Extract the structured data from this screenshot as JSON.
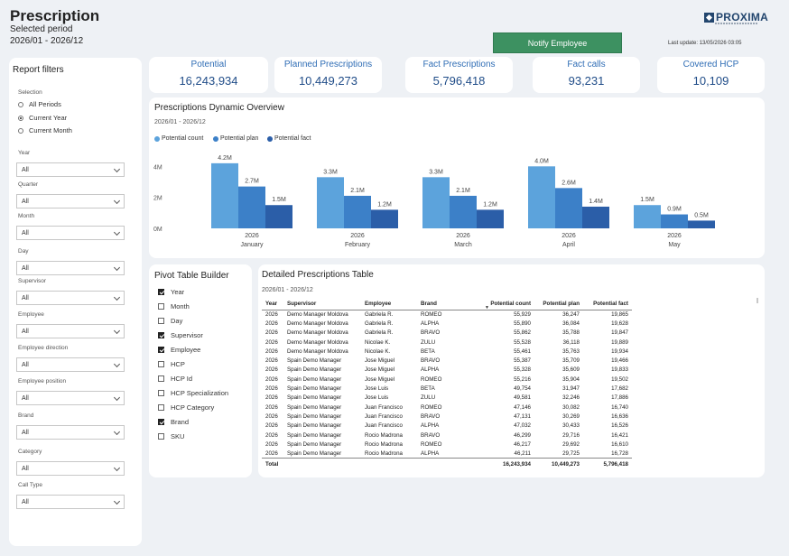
{
  "header": {
    "title": "Prescription",
    "period_label": "Selected period",
    "period_value": "2026/01 - 2026/12",
    "notify_button": "Notify Employee",
    "last_update": "Last update: 13/05/2026 03:05",
    "logo_text": "PROXIMA"
  },
  "filters": {
    "title": "Report filters",
    "selection_caption": "Selection",
    "radios": [
      {
        "label": "All Periods",
        "checked": false
      },
      {
        "label": "Current Year",
        "checked": true
      },
      {
        "label": "Current Month",
        "checked": false
      }
    ],
    "dropdowns": [
      {
        "label": "Year",
        "value": "All"
      },
      {
        "label": "Quarter",
        "value": "All"
      },
      {
        "label": "Month",
        "value": "All"
      },
      {
        "label": "Day",
        "value": "All"
      },
      {
        "label": "Supervisor",
        "value": "All"
      },
      {
        "label": "Employee",
        "value": "All"
      },
      {
        "label": "Employee direction",
        "value": "All"
      },
      {
        "label": "Employee position",
        "value": "All"
      },
      {
        "label": "Brand",
        "value": "All"
      },
      {
        "label": "Category",
        "value": "All"
      },
      {
        "label": "Call Type",
        "value": "All"
      }
    ]
  },
  "kpis": [
    {
      "label": "Potential",
      "value": "16,243,934"
    },
    {
      "label": "Planned Prescriptions",
      "value": "10,449,273"
    },
    {
      "label": "Fact Prescriptions",
      "value": "5,796,418"
    },
    {
      "label": "Fact calls",
      "value": "93,231"
    },
    {
      "label": "Covered HCP",
      "value": "10,109"
    }
  ],
  "chart": {
    "title": "Prescriptions Dynamic Overview",
    "subtitle": "2026/01 - 2026/12"
  },
  "chart_data": {
    "type": "bar",
    "categories": [
      "January",
      "February",
      "March",
      "April",
      "May"
    ],
    "year_labels": [
      "2026",
      "2026",
      "2026",
      "2026",
      "2026"
    ],
    "series": [
      {
        "name": "Potential count",
        "color": "#5ca3dc",
        "values": [
          4.2,
          3.3,
          3.3,
          4.0,
          1.5
        ],
        "labels": [
          "4.2M",
          "3.3M",
          "3.3M",
          "4.0M",
          "1.5M"
        ]
      },
      {
        "name": "Potential plan",
        "color": "#3c80c8",
        "values": [
          2.7,
          2.1,
          2.1,
          2.6,
          0.9
        ],
        "labels": [
          "2.7M",
          "2.1M",
          "2.1M",
          "2.6M",
          "0.9M"
        ]
      },
      {
        "name": "Potential fact",
        "color": "#2b5ea8",
        "values": [
          1.5,
          1.2,
          1.2,
          1.4,
          0.5
        ],
        "labels": [
          "1.5M",
          "1.2M",
          "1.2M",
          "1.4M",
          "0.5M"
        ]
      }
    ],
    "y_ticks": [
      "0M",
      "2M",
      "4M"
    ],
    "ylim": [
      0,
      4.6
    ],
    "legend_position": "top-left"
  },
  "pivot": {
    "title": "Pivot Table Builder",
    "items": [
      {
        "label": "Year",
        "checked": true
      },
      {
        "label": "Month",
        "checked": false
      },
      {
        "label": "Day",
        "checked": false
      },
      {
        "label": "Supervisor",
        "checked": true
      },
      {
        "label": "Employee",
        "checked": true
      },
      {
        "label": "HCP",
        "checked": false
      },
      {
        "label": "HCP Id",
        "checked": false
      },
      {
        "label": "HCP Specialization",
        "checked": false
      },
      {
        "label": "HCP Category",
        "checked": false
      },
      {
        "label": "Brand",
        "checked": true
      },
      {
        "label": "SKU",
        "checked": false
      }
    ]
  },
  "table": {
    "title": "Detailed Prescriptions Table",
    "subtitle": "2026/01 - 2026/12",
    "columns": [
      "Year",
      "Supervisor",
      "Employee",
      "Brand",
      "Potential count",
      "Potential plan",
      "Potential fact"
    ],
    "rows": [
      [
        "2026",
        "Demo Manager Moldova",
        "Gabriela R.",
        "ROMEO",
        "55,929",
        "36,247",
        "19,865"
      ],
      [
        "2026",
        "Demo Manager Moldova",
        "Gabriela R.",
        "ALPHA",
        "55,890",
        "36,084",
        "19,628"
      ],
      [
        "2026",
        "Demo Manager Moldova",
        "Gabriela R.",
        "BRAVO",
        "55,862",
        "35,788",
        "19,847"
      ],
      [
        "2026",
        "Demo Manager Moldova",
        "Nicolae K.",
        "ZULU",
        "55,528",
        "36,118",
        "19,889"
      ],
      [
        "2026",
        "Demo Manager Moldova",
        "Nicolae K.",
        "BETA",
        "55,461",
        "35,763",
        "19,934"
      ],
      [
        "2026",
        "Spain Demo Manager",
        "Jose Miguel",
        "BRAVO",
        "55,387",
        "35,709",
        "19,466"
      ],
      [
        "2026",
        "Spain Demo Manager",
        "Jose Miguel",
        "ALPHA",
        "55,328",
        "35,609",
        "19,833"
      ],
      [
        "2026",
        "Spain Demo Manager",
        "Jose Miguel",
        "ROMEO",
        "55,216",
        "35,904",
        "19,502"
      ],
      [
        "2026",
        "Spain Demo Manager",
        "Jose Luis",
        "BETA",
        "49,754",
        "31,947",
        "17,682"
      ],
      [
        "2026",
        "Spain Demo Manager",
        "Jose Luis",
        "ZULU",
        "49,581",
        "32,246",
        "17,886"
      ],
      [
        "2026",
        "Spain Demo Manager",
        "Juan Francisco",
        "ROMEO",
        "47,146",
        "30,082",
        "16,740"
      ],
      [
        "2026",
        "Spain Demo Manager",
        "Juan Francisco",
        "BRAVO",
        "47,131",
        "30,269",
        "16,636"
      ],
      [
        "2026",
        "Spain Demo Manager",
        "Juan Francisco",
        "ALPHA",
        "47,032",
        "30,433",
        "16,526"
      ],
      [
        "2026",
        "Spain Demo Manager",
        "Rocio Madrona",
        "BRAVO",
        "46,299",
        "29,716",
        "16,421"
      ],
      [
        "2026",
        "Spain Demo Manager",
        "Rocio Madrona",
        "ROMEO",
        "46,217",
        "29,692",
        "16,610"
      ],
      [
        "2026",
        "Spain Demo Manager",
        "Rocio Madrona",
        "ALPHA",
        "46,211",
        "29,725",
        "16,728"
      ]
    ],
    "total": {
      "label": "Total",
      "count": "16,243,934",
      "plan": "10,449,273",
      "fact": "5,796,418"
    }
  }
}
